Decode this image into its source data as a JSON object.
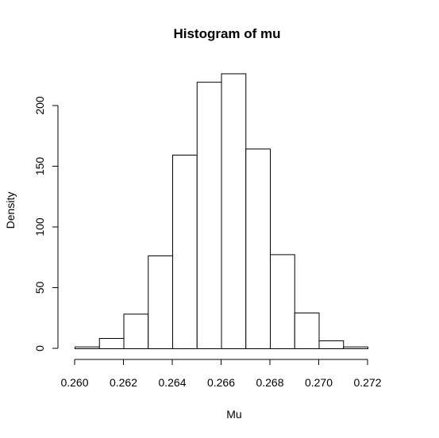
{
  "chart_data": {
    "type": "bar",
    "title": "Histogram of mu",
    "xlabel": "Mu",
    "ylabel": "Density",
    "bin_edges": [
      0.26,
      0.261,
      0.262,
      0.263,
      0.264,
      0.265,
      0.266,
      0.267,
      0.268,
      0.269,
      0.27,
      0.271,
      0.272
    ],
    "values": [
      1.5,
      8.5,
      28.5,
      76.5,
      159.5,
      219.5,
      226.5,
      164.5,
      77.5,
      29.5,
      6.5,
      1.5
    ],
    "xlim": [
      0.2597,
      0.2731
    ],
    "ylim": [
      0,
      236
    ],
    "x_ticks": [
      "0.260",
      "0.262",
      "0.264",
      "0.266",
      "0.268",
      "0.270",
      "0.272"
    ],
    "y_ticks": [
      "0",
      "50",
      "100",
      "150",
      "200"
    ],
    "grid": false,
    "colors": {
      "bar_fill": "#ffffff",
      "bar_stroke": "#000000"
    }
  }
}
